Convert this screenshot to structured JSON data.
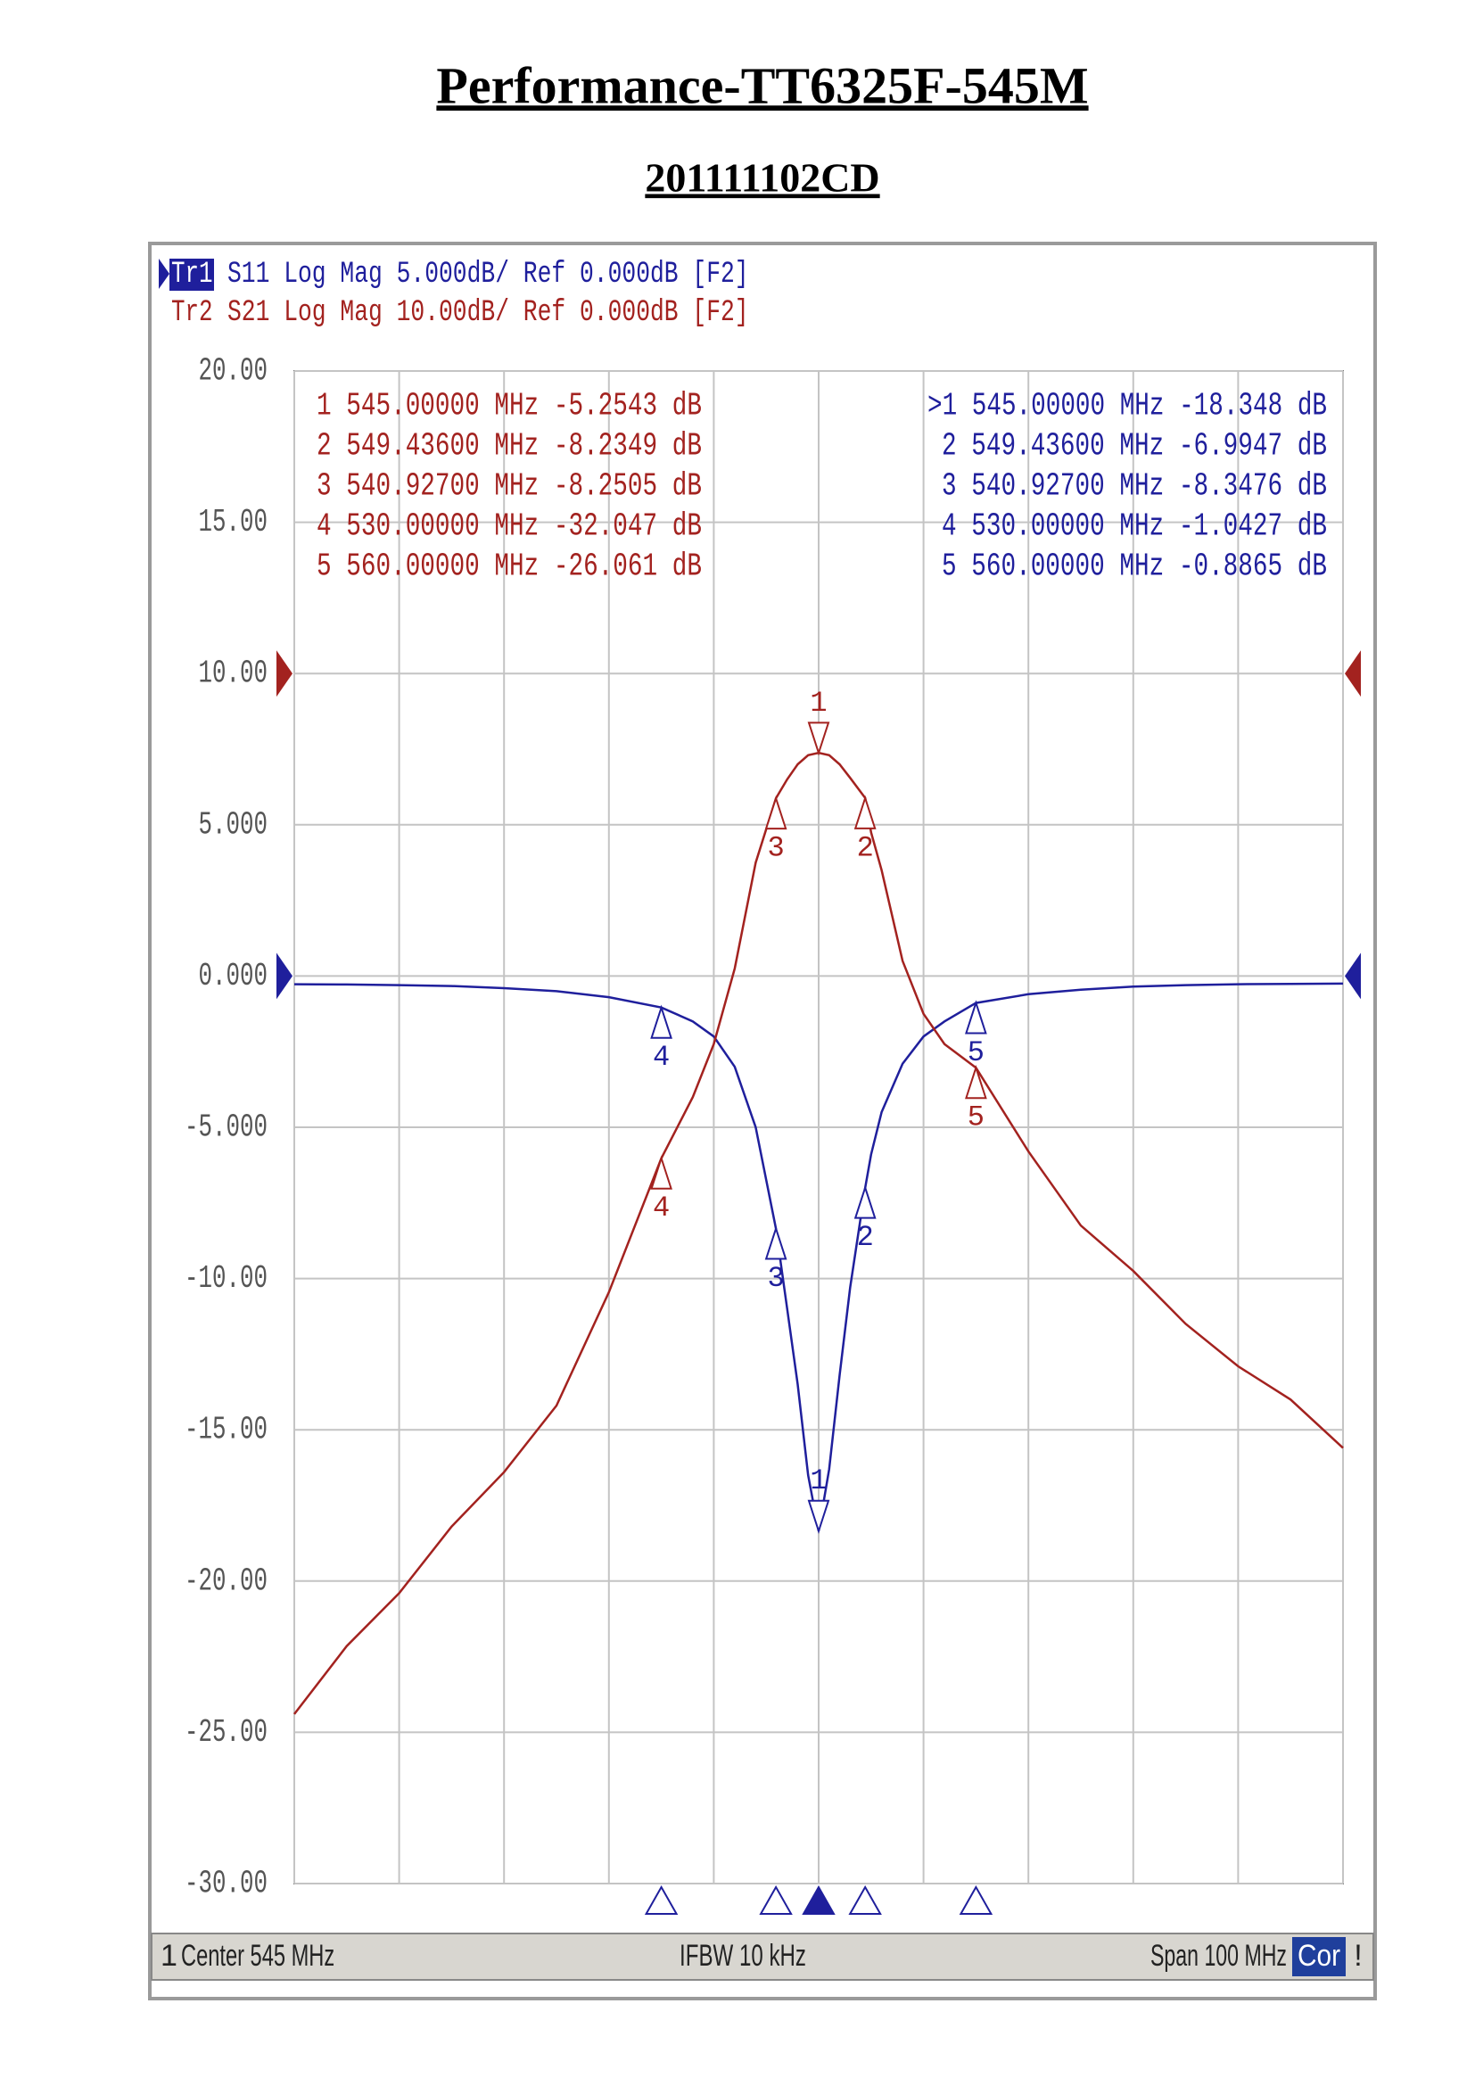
{
  "title": "Performance-TT6325F-545M",
  "subtitle": "201111102CD",
  "chart_data": {
    "type": "line",
    "xlim": [
      495,
      595
    ],
    "xticks": [
      495,
      505,
      515,
      525,
      535,
      545,
      555,
      565,
      575,
      585,
      595
    ],
    "ylim": [
      -30,
      20
    ],
    "yticks": [
      {
        "value": 20,
        "label": "20.00"
      },
      {
        "value": 15,
        "label": "15.00"
      },
      {
        "value": 10,
        "label": "10.00"
      },
      {
        "value": 5,
        "label": "5.000"
      },
      {
        "value": 0,
        "label": "0.000"
      },
      {
        "value": -5,
        "label": "-5.000"
      },
      {
        "value": -10,
        "label": "-10.00"
      },
      {
        "value": -15,
        "label": "-15.00"
      },
      {
        "value": -20,
        "label": "-20.00"
      },
      {
        "value": -25,
        "label": "-25.00"
      },
      {
        "value": -30,
        "label": "-30.00"
      }
    ],
    "y2lim": [
      -80,
      20
    ],
    "grid": true,
    "x": [
      495,
      500,
      505,
      510,
      515,
      520,
      525,
      530,
      533,
      535,
      537,
      539,
      540.927,
      542,
      543,
      544,
      545,
      546,
      547,
      548,
      549.436,
      550,
      551,
      553,
      555,
      557,
      560,
      565,
      570,
      575,
      580,
      585,
      590,
      595
    ],
    "series": [
      {
        "name": "Tr1",
        "header": "S11 Log Mag 5.000dB/ Ref 0.000dB [F2]",
        "color": "#1f1f9c",
        "ref": 0,
        "values": [
          -0.27,
          -0.28,
          -0.3,
          -0.33,
          -0.4,
          -0.5,
          -0.7,
          -1.04,
          -1.5,
          -2.0,
          -3.0,
          -5.0,
          -8.35,
          -11.0,
          -13.5,
          -16.5,
          -18.35,
          -16.3,
          -13.2,
          -10.3,
          -7.0,
          -5.9,
          -4.5,
          -2.9,
          -2.0,
          -1.5,
          -0.89,
          -0.6,
          -0.45,
          -0.35,
          -0.3,
          -0.27,
          -0.26,
          -0.25
        ],
        "markers": {
          "x": [
            545,
            549.436,
            540.927,
            530,
            560
          ],
          "values": [
            -18.348,
            -6.9947,
            -8.3476,
            -1.0427,
            -0.8865
          ],
          "labels": [
            "1",
            "2",
            "3",
            "4",
            "5"
          ],
          "rows": [
            ">1  545.00000 MHz -18.348 dB",
            "2  549.43600 MHz -6.9947 dB",
            "3  540.92700 MHz -8.3476 dB",
            "4  530.00000 MHz -1.0427 dB",
            "5  560.00000 MHz -0.8865 dB"
          ]
        }
      },
      {
        "name": "Tr2",
        "header": "S21 Log Mag 10.00dB/ Ref 0.000dB [F2]",
        "color": "#a3221f",
        "axis": "y2",
        "ref": 0,
        "values": [
          -68.8,
          -64.3,
          -60.8,
          -56.4,
          -52.8,
          -48.4,
          -40.9,
          -32.05,
          -28,
          -24.5,
          -19.5,
          -12.5,
          -8.25,
          -7,
          -6,
          -5.4,
          -5.25,
          -5.4,
          -6.0,
          -6.9,
          -8.23,
          -10.5,
          -13,
          -19,
          -22.5,
          -24.5,
          -26.06,
          -31.6,
          -36.5,
          -39.5,
          -43,
          -45.8,
          -48,
          -51.2
        ],
        "markers": {
          "x": [
            545,
            549.436,
            540.927,
            530,
            560
          ],
          "values": [
            -5.2543,
            -8.2349,
            -8.2505,
            -32.047,
            -26.061
          ],
          "labels": [
            "1",
            "2",
            "3",
            "4",
            "5"
          ],
          "rows": [
            "1  545.00000 MHz -5.2543 dB",
            "2  549.43600 MHz -8.2349 dB",
            "3  540.92700 MHz -8.2505 dB",
            "4  530.00000 MHz -32.047 dB",
            "5  560.00000 MHz -26.061 dB"
          ]
        }
      }
    ],
    "status": {
      "channel": "1",
      "center": "Center 545 MHz",
      "ifbw": "IFBW 10 kHz",
      "span": "Span 100 MHz",
      "cor": "Cor",
      "flag": "!"
    }
  }
}
